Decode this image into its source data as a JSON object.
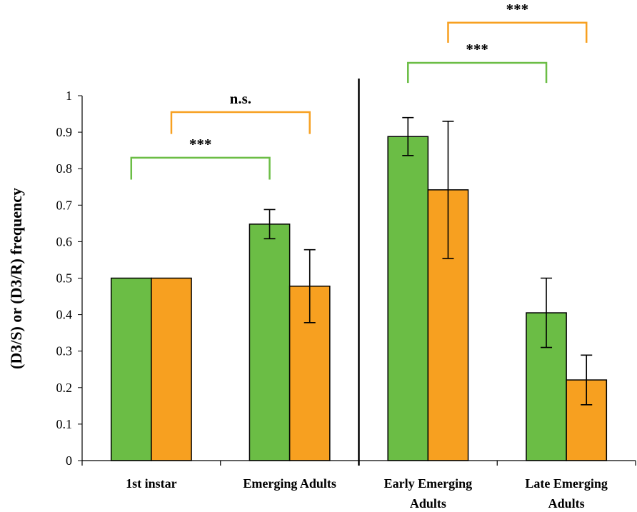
{
  "chart_data": {
    "type": "bar",
    "ylabel": "(D3/S) or (D3/R) frequency",
    "ylim": [
      0,
      1
    ],
    "yticks": [
      0,
      0.1,
      0.2,
      0.3,
      0.4,
      0.5,
      0.6,
      0.7,
      0.8,
      0.9,
      1
    ],
    "ytick_labels": [
      "0",
      "0.1",
      "0.2",
      "0.3",
      "0.4",
      "0.5",
      "0.6",
      "0.7",
      "0.8",
      "0.9",
      "1"
    ],
    "grid": false,
    "legend": "none",
    "categories": [
      {
        "lines": [
          "1st instar"
        ]
      },
      {
        "lines": [
          "Emerging Adults"
        ]
      },
      {
        "lines": [
          "Early Emerging",
          "Adults"
        ]
      },
      {
        "lines": [
          "Late Emerging",
          "Adults"
        ]
      }
    ],
    "series": [
      {
        "color": "#6bbd45",
        "values": [
          0.5,
          0.648,
          0.888,
          0.405
        ],
        "errors": [
          0,
          0.04,
          0.052,
          0.095
        ]
      },
      {
        "color": "#f7a020",
        "values": [
          0.5,
          0.478,
          0.742,
          0.221
        ],
        "errors": [
          0,
          0.1,
          0.188,
          0.068
        ]
      }
    ],
    "significance": [
      {
        "label": "***",
        "color": "#6bbd45",
        "from_category": 0,
        "to_category": 1,
        "series": 0,
        "y": 0.83,
        "drop": 0.06
      },
      {
        "label": "n.s.",
        "color": "#f7a020",
        "from_category": 0,
        "to_category": 1,
        "series": 1,
        "y": 0.955,
        "drop": 0.06
      },
      {
        "label": "***",
        "color": "#6bbd45",
        "from_category": 2,
        "to_category": 3,
        "series": 0,
        "y": 1.09,
        "drop": 0.055
      },
      {
        "label": "***",
        "color": "#f7a020",
        "from_category": 2,
        "to_category": 3,
        "series": 1,
        "y": 1.2,
        "drop": 0.055
      }
    ],
    "separator_after_category": 1
  }
}
